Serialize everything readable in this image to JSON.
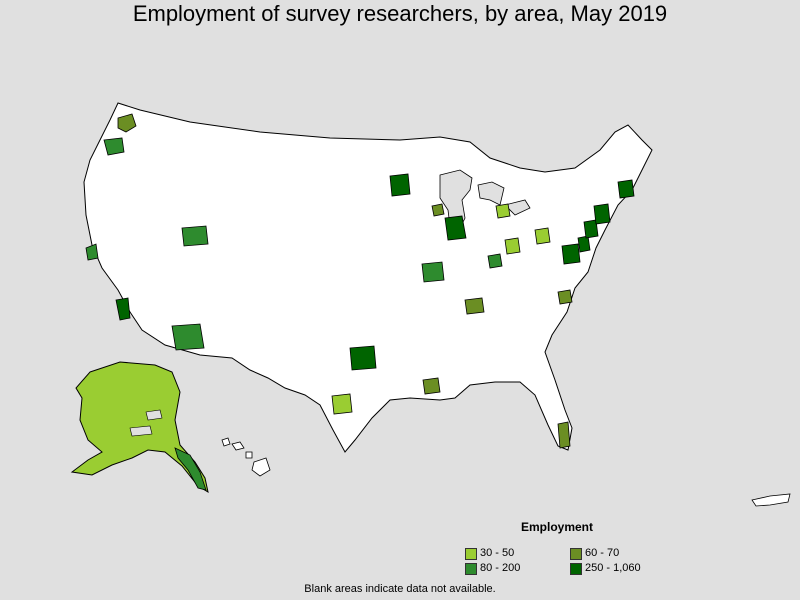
{
  "title": "Employment of survey researchers, by area, May 2019",
  "legend": {
    "title": "Employment",
    "items": [
      {
        "label": "30 - 50",
        "color": "#9acd32"
      },
      {
        "label": "60 - 70",
        "color": "#6b8e23"
      },
      {
        "label": "80 - 200",
        "color": "#2e8b2e"
      },
      {
        "label": "250 - 1,060",
        "color": "#006400"
      }
    ]
  },
  "footnote": "Blank areas indicate data not available.",
  "colors": {
    "background": "#e0e0e0",
    "land": "#ffffff",
    "border": "#000000"
  }
}
